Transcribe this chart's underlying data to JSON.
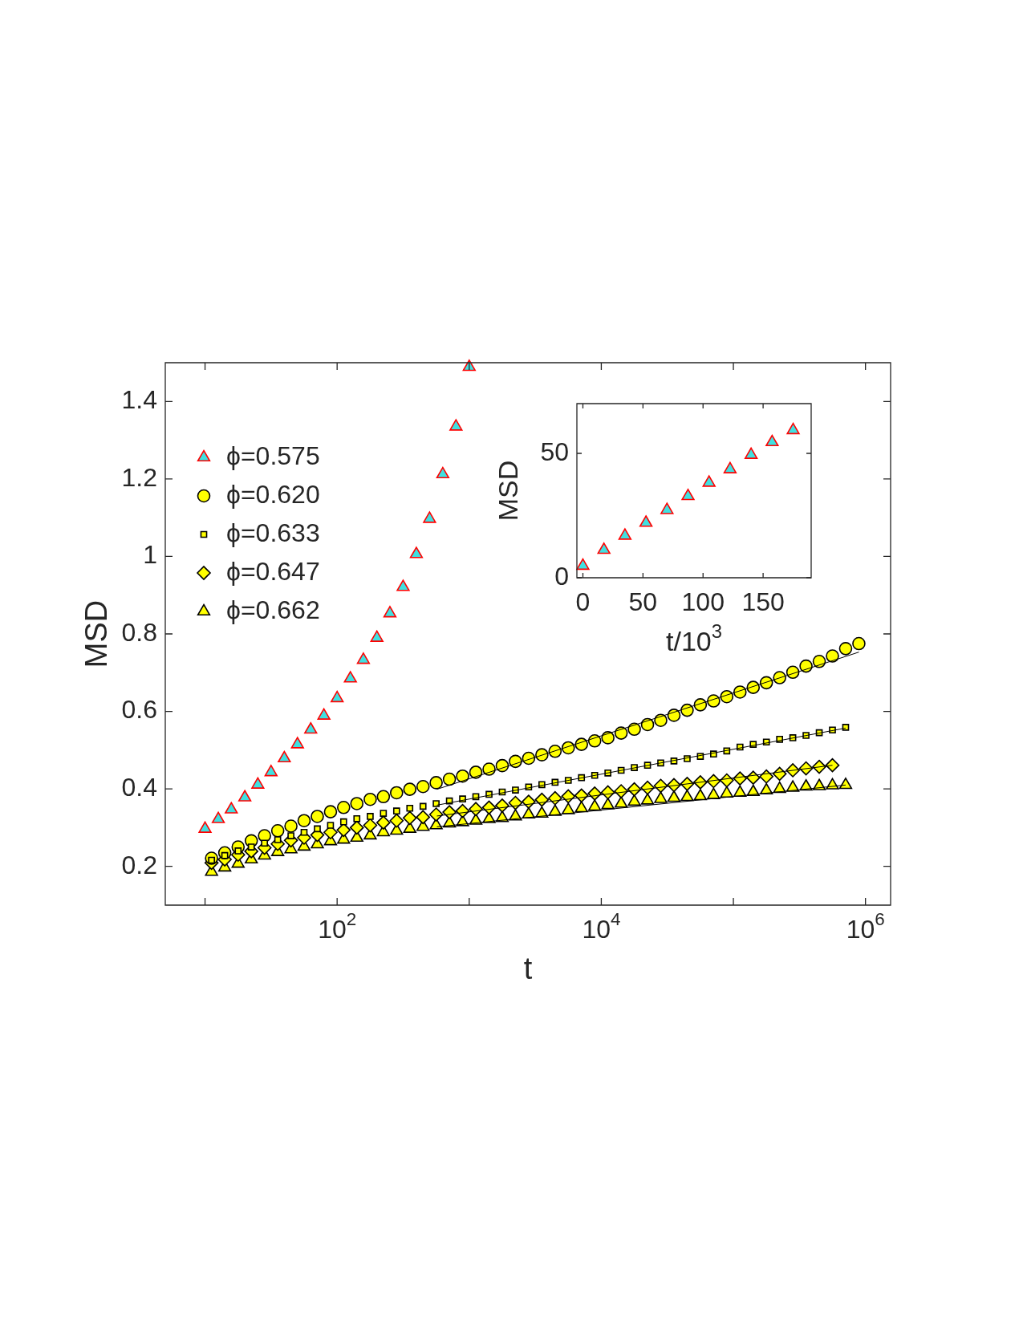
{
  "chart_data": [
    {
      "type": "scatter",
      "xlabel": "t",
      "ylabel": "MSD",
      "log": "x",
      "xlim": [
        5,
        1550000
      ],
      "ylim": [
        0.1,
        1.5
      ],
      "xticks": [
        {
          "value": 10,
          "label": null
        },
        {
          "value": 100,
          "label": "10$^{2}$"
        },
        {
          "value": 1000,
          "label": null
        },
        {
          "value": 10000,
          "label": "10$^{4}$"
        },
        {
          "value": 100000,
          "label": null
        },
        {
          "value": 1000000,
          "label": "10$^{6}$"
        }
      ],
      "yticks": [
        {
          "value": 0.2,
          "label": "0.2"
        },
        {
          "value": 0.4,
          "label": "0.4"
        },
        {
          "value": 0.6,
          "label": "0.6"
        },
        {
          "value": 0.8,
          "label": "0.8"
        },
        {
          "value": 1,
          "label": "1"
        },
        {
          "value": 1.2,
          "label": "1.2"
        },
        {
          "value": 1.4,
          "label": "1.4"
        }
      ],
      "legend": "top left",
      "series": [
        {
          "name": "ϕ=0.575",
          "marker": "triangle",
          "color": "#40e0e0",
          "x": [
            10,
            12.6,
            15.8,
            20,
            25.1,
            31.6,
            39.8,
            50.1,
            63.1,
            79.4,
            100,
            126,
            158,
            200,
            251,
            316,
            398,
            501,
            631,
            794,
            1000
          ],
          "values": [
            0.297,
            0.322,
            0.347,
            0.378,
            0.411,
            0.443,
            0.479,
            0.515,
            0.553,
            0.589,
            0.634,
            0.685,
            0.733,
            0.79,
            0.853,
            0.921,
            1.006,
            1.097,
            1.212,
            1.335,
            1.489
          ]
        },
        {
          "name": "ϕ=0.620",
          "marker": "circle",
          "color": "#ffff00",
          "x": [
            11.2,
            14.1,
            17.8,
            22.4,
            28.2,
            35.5,
            44.7,
            56.2,
            70.8,
            89.1,
            112,
            141,
            178,
            224,
            282,
            355,
            447,
            562,
            708,
            891,
            1122,
            1413,
            1778,
            2239,
            2818,
            3548,
            4467,
            5623,
            7079,
            8913,
            11220,
            14130,
            17780,
            22390,
            28180,
            35480,
            44670,
            56230,
            70790,
            89130,
            112200,
            141300,
            177800,
            223900,
            281800,
            354800,
            446700,
            562300,
            707900,
            891300
          ],
          "values": [
            0.221,
            0.235,
            0.25,
            0.266,
            0.279,
            0.292,
            0.304,
            0.318,
            0.329,
            0.341,
            0.352,
            0.362,
            0.373,
            0.38,
            0.39,
            0.399,
            0.406,
            0.416,
            0.425,
            0.433,
            0.443,
            0.451,
            0.46,
            0.471,
            0.479,
            0.488,
            0.497,
            0.506,
            0.515,
            0.524,
            0.532,
            0.544,
            0.554,
            0.566,
            0.577,
            0.59,
            0.603,
            0.617,
            0.627,
            0.638,
            0.65,
            0.662,
            0.674,
            0.687,
            0.701,
            0.717,
            0.729,
            0.743,
            0.762,
            0.775
          ]
        },
        {
          "name": "ϕ=0.633",
          "marker": "square",
          "color": "#ffff00",
          "x": [
            11.2,
            14.1,
            17.8,
            22.4,
            28.2,
            35.5,
            44.7,
            56.2,
            70.8,
            89.1,
            112,
            141,
            178,
            224,
            282,
            355,
            447,
            562,
            708,
            891,
            1122,
            1413,
            1778,
            2239,
            2818,
            3548,
            4467,
            5623,
            7079,
            8913,
            11220,
            14130,
            17780,
            22390,
            28180,
            35480,
            44670,
            56230,
            70790,
            89130,
            112200,
            141300,
            177800,
            223900,
            281800,
            354800,
            446700,
            562300,
            707900
          ],
          "values": [
            0.216,
            0.228,
            0.24,
            0.25,
            0.26,
            0.269,
            0.279,
            0.288,
            0.297,
            0.306,
            0.315,
            0.323,
            0.329,
            0.337,
            0.343,
            0.35,
            0.355,
            0.362,
            0.369,
            0.374,
            0.38,
            0.386,
            0.392,
            0.397,
            0.405,
            0.411,
            0.417,
            0.422,
            0.429,
            0.435,
            0.441,
            0.448,
            0.455,
            0.461,
            0.467,
            0.472,
            0.478,
            0.484,
            0.49,
            0.498,
            0.508,
            0.515,
            0.521,
            0.528,
            0.532,
            0.538,
            0.545,
            0.552,
            0.559
          ]
        },
        {
          "name": "ϕ=0.647",
          "marker": "diamond",
          "color": "#ffff00",
          "x": [
            11.2,
            14.1,
            17.8,
            22.4,
            28.2,
            35.5,
            44.7,
            56.2,
            70.8,
            89.1,
            112,
            141,
            178,
            224,
            282,
            355,
            447,
            562,
            708,
            891,
            1122,
            1413,
            1778,
            2239,
            2818,
            3548,
            4467,
            5623,
            7079,
            8913,
            11220,
            14130,
            17780,
            22390,
            28180,
            35480,
            44670,
            56230,
            70790,
            89130,
            112200,
            141300,
            177800,
            223900,
            281800,
            354800,
            446700,
            562300
          ],
          "values": [
            0.209,
            0.218,
            0.23,
            0.239,
            0.248,
            0.258,
            0.267,
            0.274,
            0.281,
            0.288,
            0.294,
            0.3,
            0.306,
            0.313,
            0.318,
            0.325,
            0.327,
            0.334,
            0.34,
            0.343,
            0.348,
            0.352,
            0.357,
            0.364,
            0.367,
            0.372,
            0.376,
            0.381,
            0.383,
            0.388,
            0.391,
            0.394,
            0.399,
            0.403,
            0.408,
            0.41,
            0.413,
            0.417,
            0.42,
            0.422,
            0.427,
            0.429,
            0.432,
            0.439,
            0.448,
            0.453,
            0.457,
            0.461
          ]
        },
        {
          "name": "ϕ=0.662",
          "marker": "triangle",
          "color": "#ffff00",
          "x": [
            11.2,
            14.1,
            17.8,
            22.4,
            28.2,
            35.5,
            44.7,
            56.2,
            70.8,
            89.1,
            112,
            141,
            178,
            224,
            282,
            355,
            447,
            562,
            708,
            891,
            1122,
            1413,
            1778,
            2239,
            2818,
            3548,
            4467,
            5623,
            7079,
            8913,
            11220,
            14130,
            17780,
            22390,
            28180,
            35480,
            44670,
            56230,
            70790,
            89130,
            112200,
            141300,
            177800,
            223900,
            281800,
            354800,
            446700,
            562300,
            707900
          ],
          "values": [
            0.186,
            0.197,
            0.207,
            0.218,
            0.228,
            0.237,
            0.244,
            0.251,
            0.257,
            0.265,
            0.269,
            0.274,
            0.28,
            0.288,
            0.292,
            0.297,
            0.302,
            0.306,
            0.311,
            0.314,
            0.318,
            0.322,
            0.325,
            0.329,
            0.334,
            0.336,
            0.341,
            0.345,
            0.35,
            0.354,
            0.358,
            0.362,
            0.367,
            0.37,
            0.374,
            0.377,
            0.379,
            0.381,
            0.384,
            0.388,
            0.39,
            0.392,
            0.396,
            0.4,
            0.403,
            0.406,
            0.407,
            0.409,
            0.41
          ]
        },
        {
          "type": "line",
          "marker": "none",
          "color": "#000000",
          "x": [
            569,
            891300
          ],
          "values": [
            0.399,
            0.753
          ]
        },
        {
          "type": "line",
          "marker": "none",
          "color": "#000000",
          "x": [
            569,
            707900
          ],
          "values": [
            0.358,
            0.557
          ]
        },
        {
          "type": "line",
          "marker": "none",
          "color": "#000000",
          "x": [
            569,
            562300
          ],
          "values": [
            0.33,
            0.461
          ]
        },
        {
          "type": "line",
          "marker": "none",
          "color": "#000000",
          "x": [
            569,
            707900
          ],
          "values": [
            0.302,
            0.41
          ]
        }
      ]
    },
    {
      "type": "scatter",
      "xlabel": "t/10$^{3}$",
      "ylabel": "MSD",
      "xlim": [
        -5,
        190
      ],
      "ylim": [
        0,
        70
      ],
      "xticks": [
        0,
        50,
        100,
        150
      ],
      "yticks": [
        0,
        50
      ],
      "series": [
        {
          "marker": "triangle",
          "color": "#40e0e0",
          "x": [
            0,
            17.5,
            35,
            52.5,
            70,
            87.5,
            105,
            122.5,
            140,
            157.5,
            175
          ],
          "values": [
            4.8,
            11.2,
            16.9,
            22.1,
            27.2,
            32.8,
            38.2,
            43.6,
            49.4,
            54.5,
            59.3
          ]
        }
      ]
    }
  ]
}
